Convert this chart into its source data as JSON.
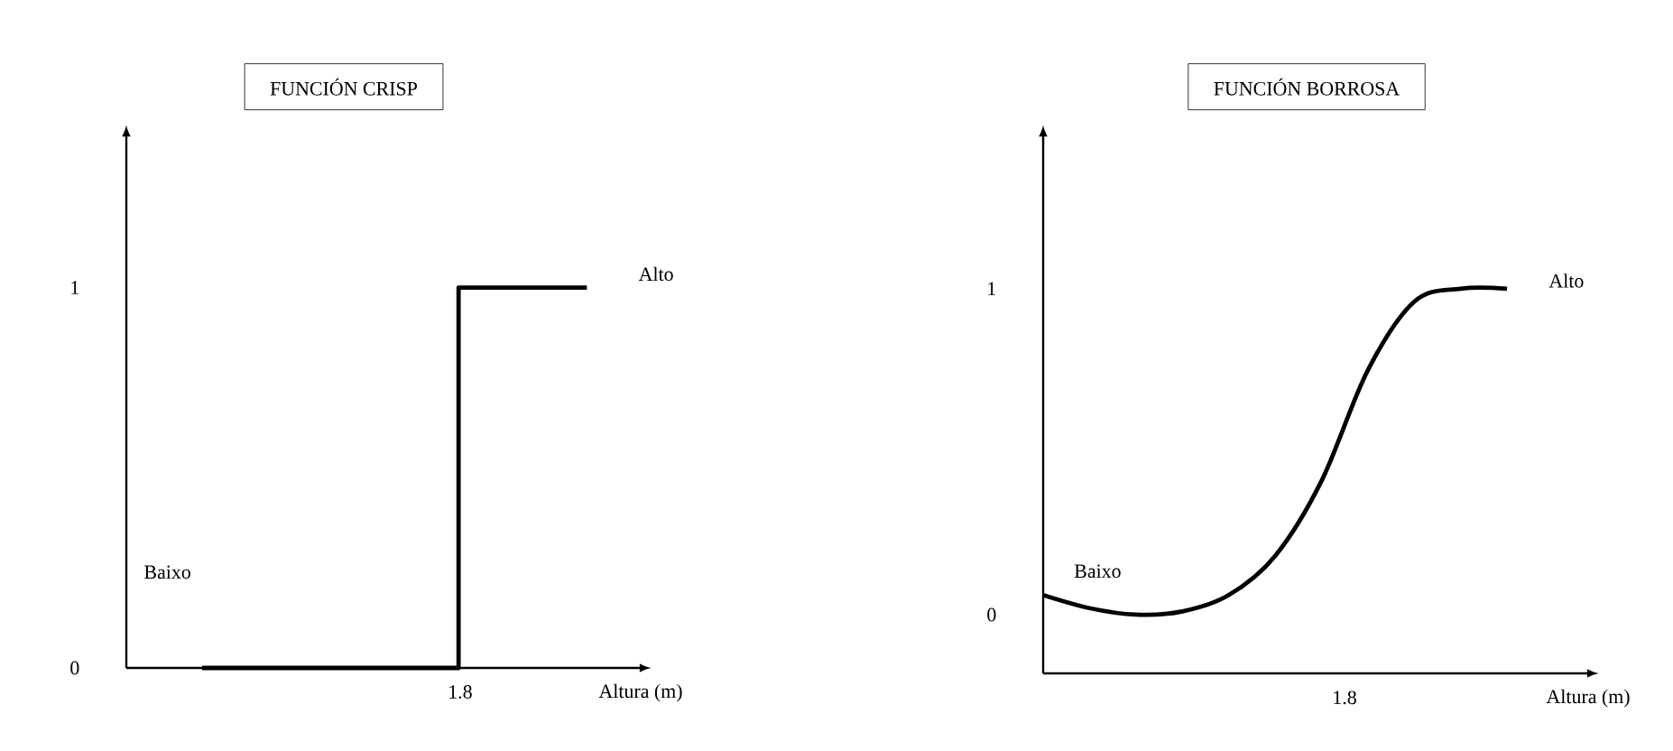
{
  "chart_data": [
    {
      "type": "step",
      "title": "FUNCIÓN CRISP",
      "xlabel": "Altura (m)",
      "categories": [
        null,
        null,
        null,
        null
      ],
      "values": [
        0,
        0,
        1,
        1
      ],
      "color": "#000000",
      "ylim": [
        0,
        1.4
      ],
      "yticks": [
        0,
        1
      ],
      "annotations": [
        "Alto",
        "Baixo",
        "1.8"
      ]
    },
    {
      "type": "line",
      "title": "FUNCIÓN BORROSA",
      "xlabel": "Altura (m)",
      "categories": [
        null,
        null,
        null,
        null,
        null,
        null,
        null,
        null,
        null,
        null,
        null
      ],
      "values": [
        0.06,
        0.02,
        0,
        0.01,
        0.06,
        0.18,
        0.41,
        0.75,
        0.96,
        1.0,
        1.0
      ],
      "color": "#000000",
      "ylim": [
        -0.18,
        1.47
      ],
      "yticks": [
        0,
        1
      ],
      "annotations": [
        "Alto",
        "Baixo",
        "1.8"
      ]
    }
  ]
}
